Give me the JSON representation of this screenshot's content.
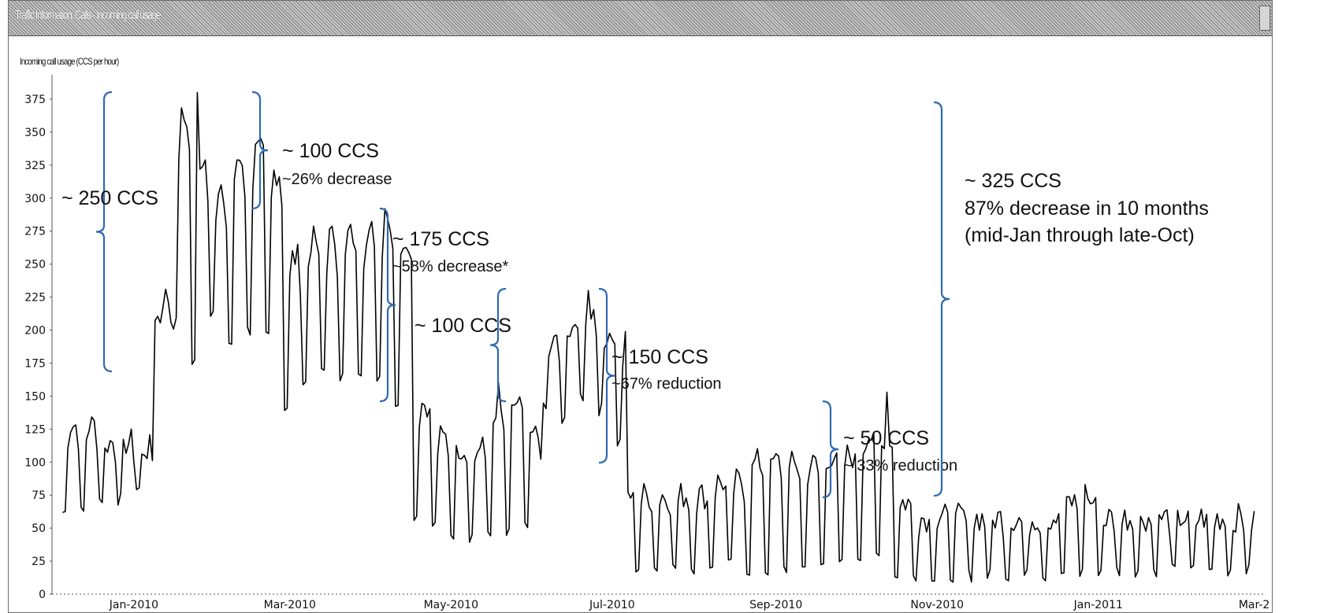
{
  "window": {
    "title": "Traffic Information: Calls - Incoming call usage"
  },
  "chart_data": {
    "type": "line",
    "ylabel": "Incoming call usage (CCS per hour)",
    "ylim": [
      0,
      375
    ],
    "yticks": [
      0,
      25,
      50,
      75,
      100,
      125,
      150,
      175,
      200,
      225,
      250,
      275,
      300,
      325,
      350,
      375
    ],
    "xlim": [
      "2009-12-01",
      "2011-03-05"
    ],
    "xticks": [
      {
        "date": "2010-01-01",
        "label": "Jan-2010"
      },
      {
        "date": "2010-03-01",
        "label": "Mar-2010"
      },
      {
        "date": "2010-05-01",
        "label": "May-2010"
      },
      {
        "date": "2010-07-01",
        "label": "Jul-2010"
      },
      {
        "date": "2010-09-01",
        "label": "Sep-2010"
      },
      {
        "date": "2010-11-01",
        "label": "Nov-2010"
      },
      {
        "date": "2011-01-01",
        "label": "Jan-2011"
      },
      {
        "date": "2011-03-01",
        "label": "Mar-2"
      }
    ],
    "line_color": "#000000",
    "weekly_profile": [
      {
        "start": "2009-12-05",
        "weekday": 128,
        "weekend": 62
      },
      {
        "start": "2009-12-19",
        "weekday": 115,
        "weekend": 72
      },
      {
        "start": "2010-01-02",
        "weekday": 110,
        "weekend": 80
      },
      {
        "start": "2010-01-09",
        "weekday": 225,
        "weekend": 210
      },
      {
        "start": "2010-01-16",
        "weekday": 360,
        "weekend": 205
      },
      {
        "start": "2010-01-23",
        "weekday": 330,
        "weekend": 175
      },
      {
        "start": "2010-01-30",
        "weekday": 300,
        "weekend": 215
      },
      {
        "start": "2010-02-06",
        "weekday": 330,
        "weekend": 190
      },
      {
        "start": "2010-02-13",
        "weekday": 335,
        "weekend": 200
      },
      {
        "start": "2010-02-20",
        "weekday": 320,
        "weekend": 195
      },
      {
        "start": "2010-02-27",
        "weekday": 255,
        "weekend": 142
      },
      {
        "start": "2010-03-06",
        "weekday": 268,
        "weekend": 160
      },
      {
        "start": "2010-03-13",
        "weekday": 270,
        "weekend": 170
      },
      {
        "start": "2010-03-20",
        "weekday": 272,
        "weekend": 165
      },
      {
        "start": "2010-03-27",
        "weekday": 275,
        "weekend": 170
      },
      {
        "start": "2010-04-03",
        "weekday": 285,
        "weekend": 165
      },
      {
        "start": "2010-04-10",
        "weekday": 270,
        "weekend": 145
      },
      {
        "start": "2010-04-17",
        "weekday": 145,
        "weekend": 60
      },
      {
        "start": "2010-04-24",
        "weekday": 118,
        "weekend": 52
      },
      {
        "start": "2010-05-01",
        "weekday": 112,
        "weekend": 46
      },
      {
        "start": "2010-05-08",
        "weekday": 110,
        "weekend": 44
      },
      {
        "start": "2010-05-15",
        "weekday": 130,
        "weekend": 48
      },
      {
        "start": "2010-05-22",
        "weekday": 145,
        "weekend": 45
      },
      {
        "start": "2010-05-29",
        "weekday": 120,
        "weekend": 50
      },
      {
        "start": "2010-06-05",
        "weekday": 190,
        "weekend": 140
      },
      {
        "start": "2010-06-12",
        "weekday": 205,
        "weekend": 130
      },
      {
        "start": "2010-06-19",
        "weekday": 215,
        "weekend": 150
      },
      {
        "start": "2010-06-26",
        "weekday": 200,
        "weekend": 140
      },
      {
        "start": "2010-07-03",
        "weekday": 190,
        "weekend": 115
      },
      {
        "start": "2010-07-07",
        "weekday": 75,
        "weekend": 20
      },
      {
        "start": "2010-08-07",
        "weekday": 85,
        "weekend": 22
      },
      {
        "start": "2010-08-21",
        "weekday": 100,
        "weekend": 18
      },
      {
        "start": "2010-09-04",
        "weekday": 98,
        "weekend": 20
      },
      {
        "start": "2010-09-18",
        "weekday": 105,
        "weekend": 22
      },
      {
        "start": "2010-10-02",
        "weekday": 120,
        "weekend": 28
      },
      {
        "start": "2010-10-16",
        "weekday": 70,
        "weekend": 15
      },
      {
        "start": "2010-10-23",
        "weekday": 58,
        "weekend": 14
      },
      {
        "start": "2010-12-18",
        "weekday": 70,
        "weekend": 16
      },
      {
        "start": "2011-01-01",
        "weekday": 58,
        "weekend": 18
      }
    ],
    "peaks": [
      {
        "date": "2010-01-25",
        "value": 380
      },
      {
        "date": "2010-02-19",
        "value": 340
      },
      {
        "date": "2010-04-06",
        "value": 292
      },
      {
        "date": "2010-05-19",
        "value": 160
      },
      {
        "date": "2010-06-22",
        "value": 230
      },
      {
        "date": "2010-10-13",
        "value": 153
      },
      {
        "date": "2010-12-27",
        "value": 83
      }
    ],
    "annotations": [
      {
        "label": "~ 250 CCS",
        "sub": ""
      },
      {
        "label": "~ 100 CCS",
        "sub": "~26% decrease"
      },
      {
        "label": "~ 175 CCS",
        "sub": "~58% decrease*"
      },
      {
        "label": "~ 100 CCS",
        "sub": ""
      },
      {
        "label": "~ 150 CCS",
        "sub": "~67% reduction"
      },
      {
        "label": "~ 50 CCS",
        "sub": "~ 33% reduction"
      },
      {
        "label": "~ 325 CCS",
        "sub": "87% decrease in 10 months",
        "sub2": "(mid-Jan through late-Oct)"
      }
    ],
    "annotation_color": "#2f6ab3",
    "grid": false
  }
}
